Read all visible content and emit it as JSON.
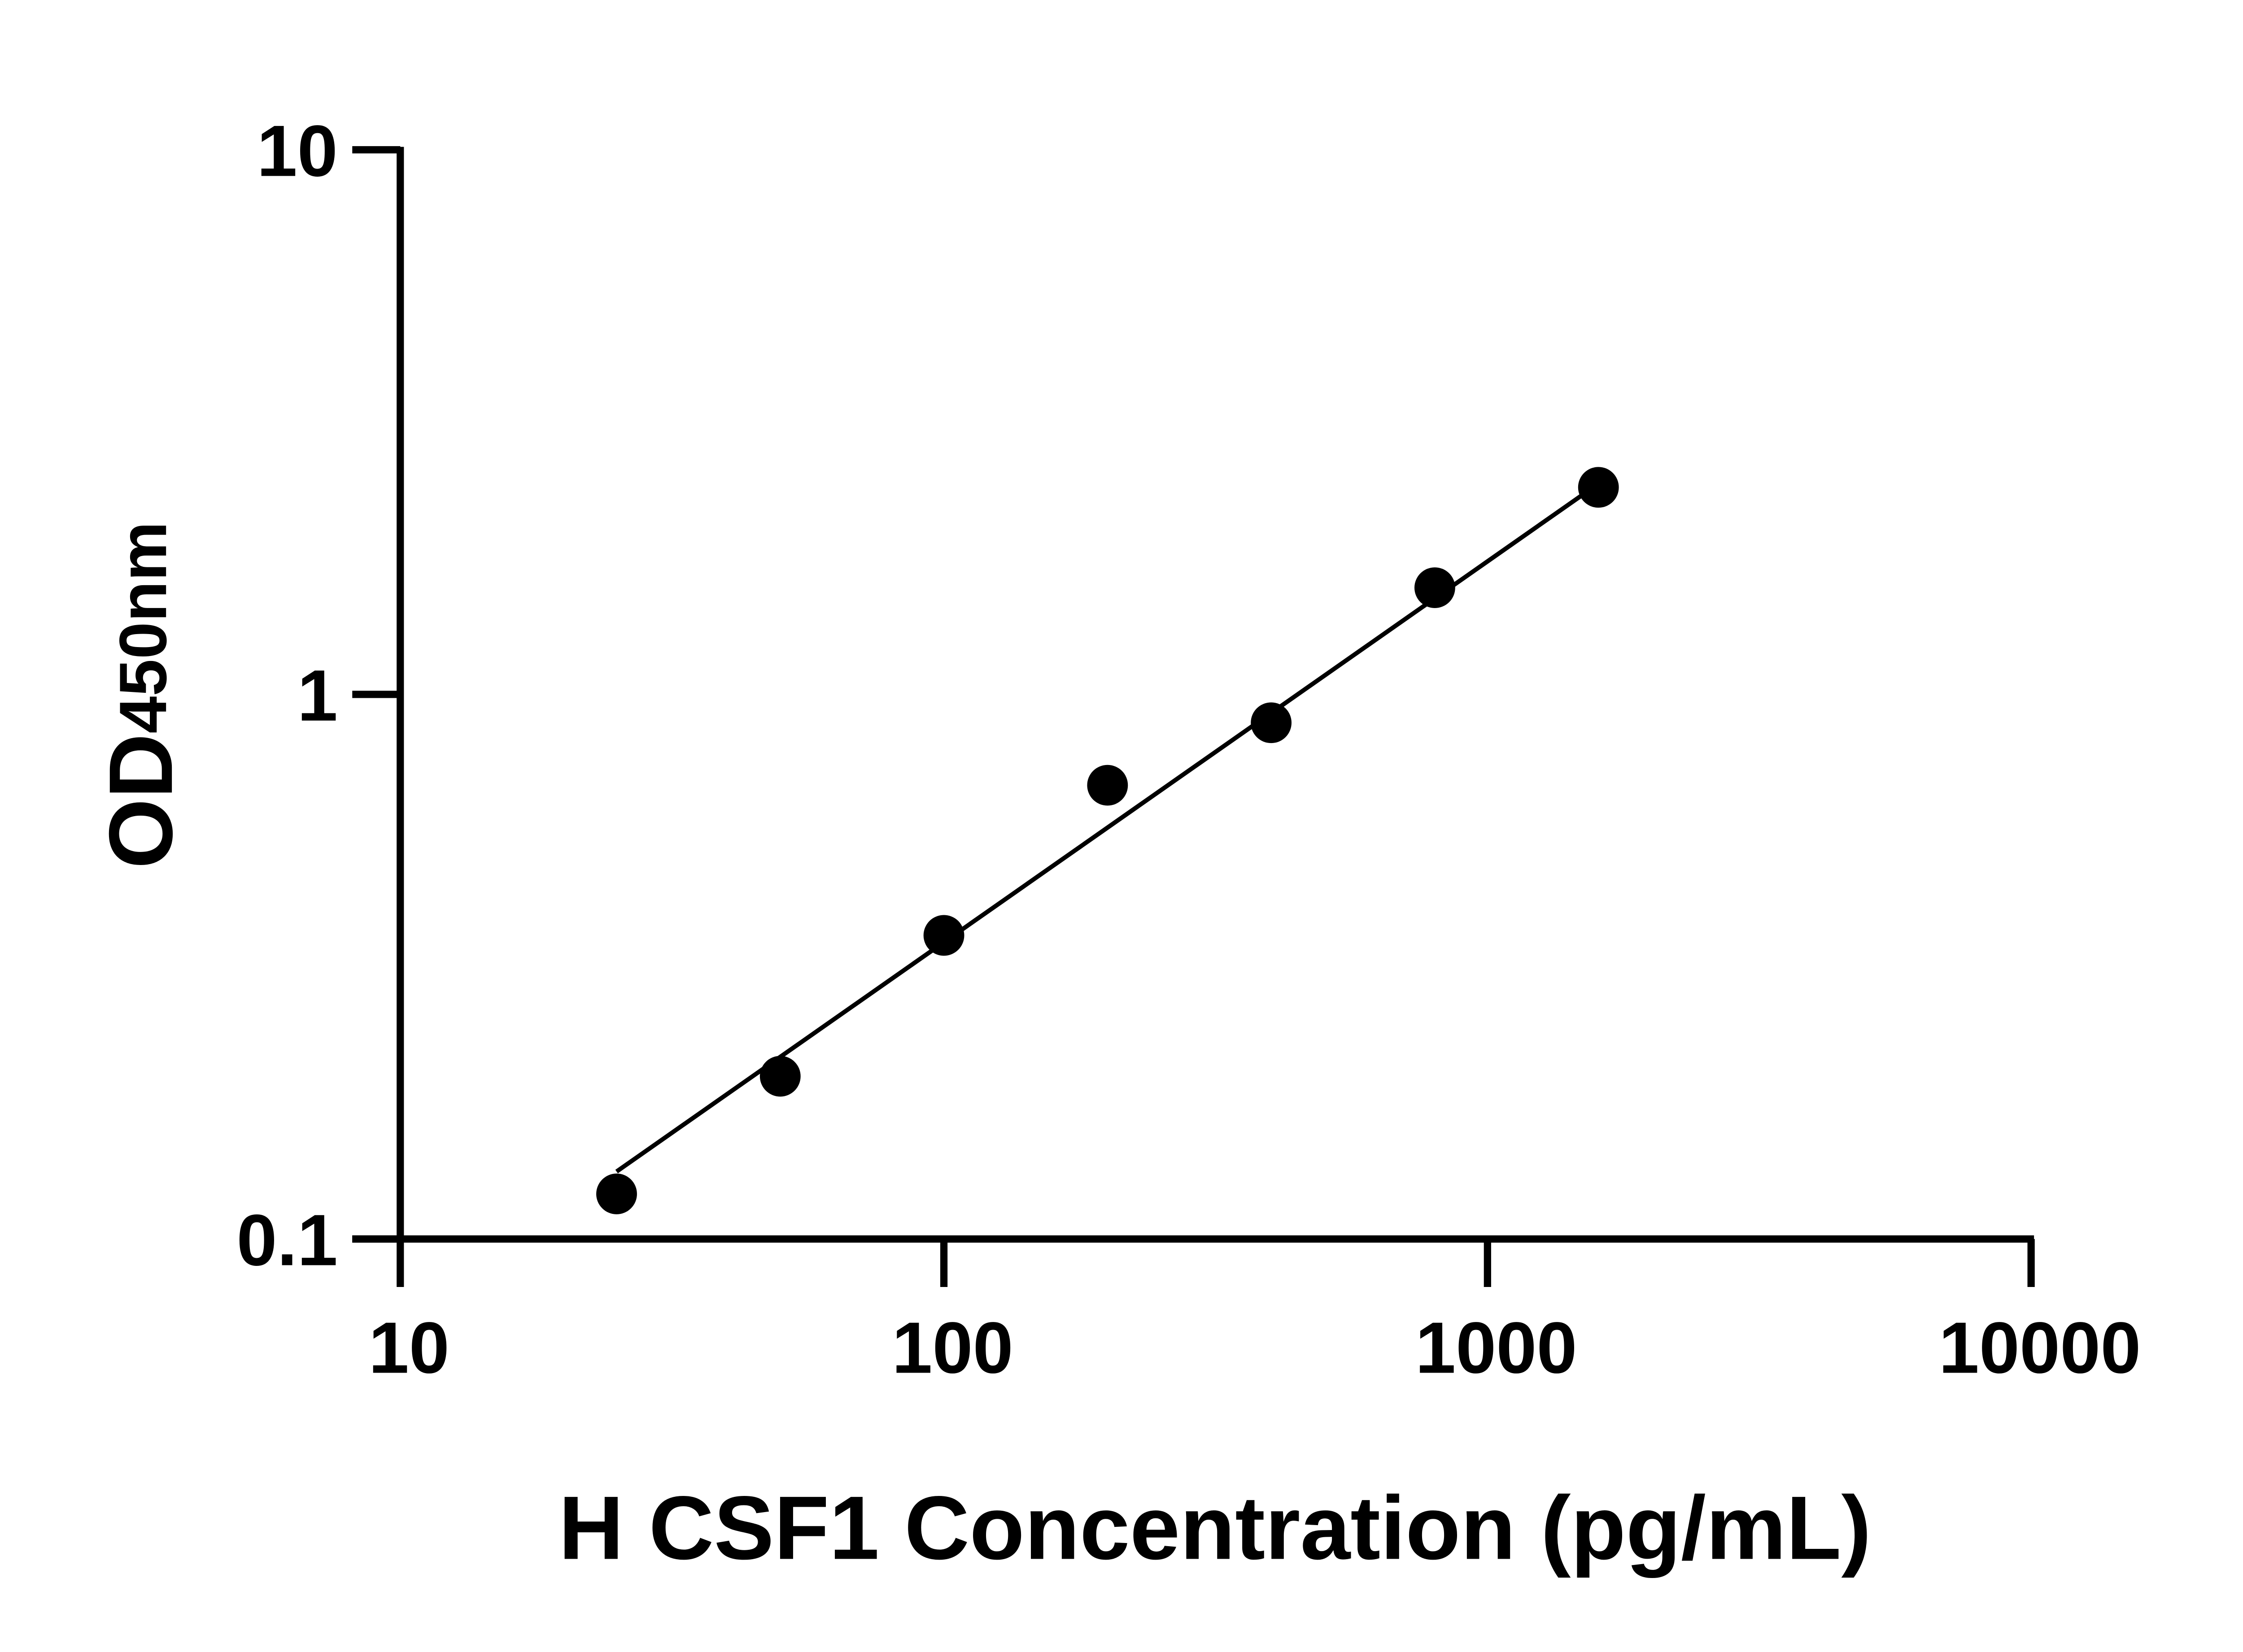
{
  "chart_data": {
    "type": "scatter",
    "title": "",
    "xlabel": "H CSF1 Concentration (pg/mL)",
    "ylabel": {
      "main": "OD",
      "sub": "450nm"
    },
    "xscale": "log",
    "yscale": "log",
    "xlim": [
      10,
      10000
    ],
    "ylim": [
      0.1,
      10
    ],
    "xticks": [
      "10",
      "100",
      "1000",
      "10000"
    ],
    "yticks": [
      "0.1",
      "1",
      "10"
    ],
    "grid": false,
    "legend": "none",
    "series": [
      {
        "x": [
          25,
          50,
          100,
          200,
          400,
          800,
          1600
        ],
        "y": [
          0.121,
          0.199,
          0.361,
          0.681,
          0.887,
          1.57,
          2.4
        ],
        "marker": "filled-circle",
        "color": "#000000"
      }
    ],
    "fit_line": {
      "x": [
        25,
        1500
      ],
      "y": [
        0.133,
        2.33
      ],
      "color": "#000000"
    }
  }
}
